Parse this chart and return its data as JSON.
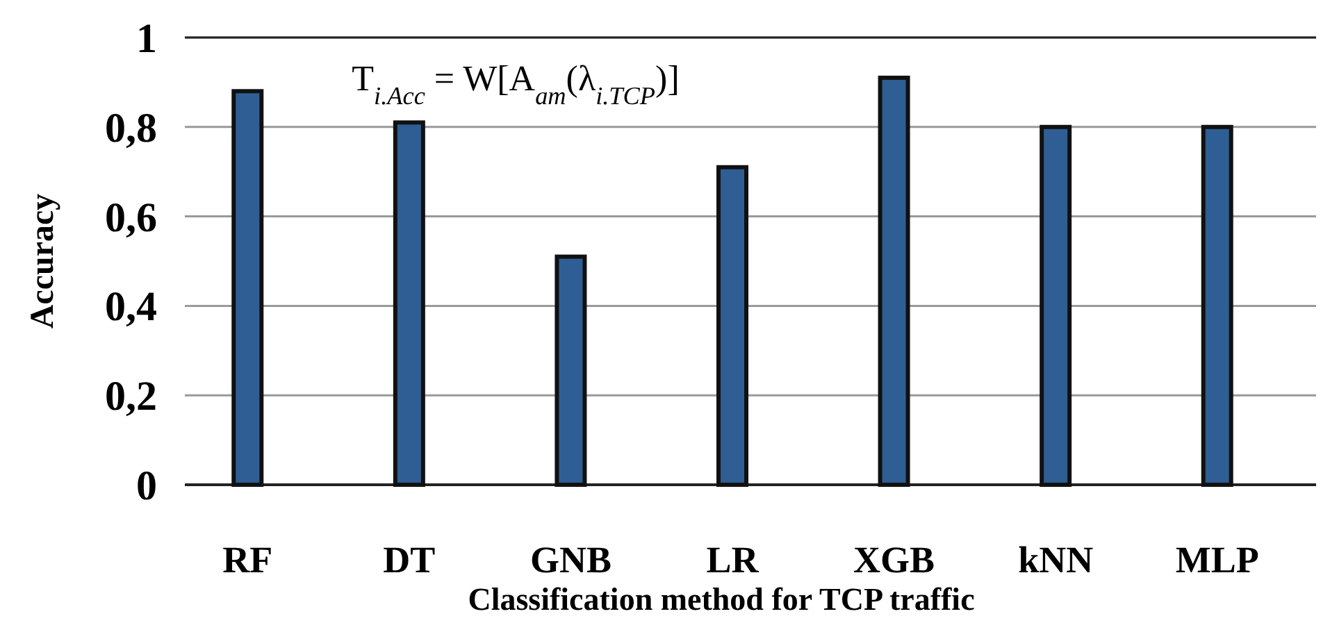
{
  "chart_data": {
    "type": "bar",
    "xlabel": "Classification method for TCP traffic",
    "ylabel": "Accuracy",
    "categories": [
      "RF",
      "DT",
      "GNB",
      "LR",
      "XGB",
      "kNN",
      "MLP"
    ],
    "values": [
      0.88,
      0.81,
      0.51,
      0.71,
      0.91,
      0.8,
      0.8
    ],
    "color": "#2e5e94",
    "ylim": [
      0,
      1
    ],
    "yticks": [
      {
        "value": 0,
        "label": "0"
      },
      {
        "value": 0.2,
        "label": "0,2"
      },
      {
        "value": 0.4,
        "label": "0,4"
      },
      {
        "value": 0.6,
        "label": "0,6"
      },
      {
        "value": 0.8,
        "label": "0,8"
      },
      {
        "value": 1,
        "label": "1"
      }
    ],
    "grid": "y",
    "annotations": [
      "T$_{i.Acc}$ = W[A$_{am}$(λ$_{i.TCP}$)]"
    ]
  }
}
